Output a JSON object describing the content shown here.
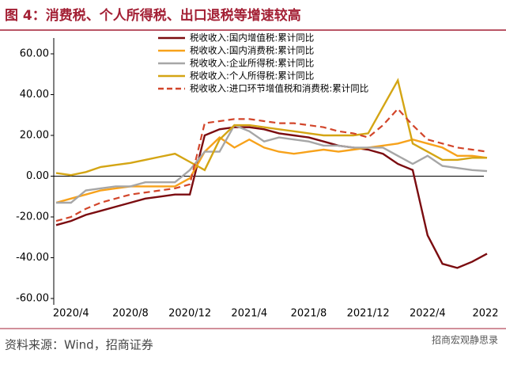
{
  "chart_data": {
    "type": "line",
    "title": "图 4：消费税、个人所得税、出口退税等增速较高",
    "source": "资料来源：Wind，招商证券",
    "watermark": "招商宏观静思录",
    "categories": [
      null,
      "2020/4",
      null,
      null,
      null,
      "2020/8",
      null,
      null,
      null,
      "2020/12",
      null,
      null,
      null,
      "2021/4",
      null,
      null,
      null,
      "2021/8",
      null,
      null,
      null,
      "2021/12",
      null,
      null,
      null,
      "2022/4",
      null,
      null,
      null,
      "2022"
    ],
    "series": [
      {
        "name": "税收收入:国内增值税:累计同比",
        "color": "#7b0c10",
        "dash": false,
        "values": [
          -24,
          -22,
          -19,
          -17,
          -15,
          -13,
          -11,
          -10,
          -9,
          -9,
          20,
          23,
          24,
          24,
          23,
          21,
          20,
          19,
          17,
          15,
          14,
          13,
          11,
          6,
          3,
          -29,
          -43,
          -45,
          -42,
          -38
        ]
      },
      {
        "name": "税收收入:国内消费税:累计同比",
        "color": "#f7a21b",
        "dash": false,
        "values": [
          -13,
          -11,
          -9,
          -7,
          -6,
          -5,
          -5,
          -5,
          -5,
          -1,
          12,
          19,
          14,
          18,
          14,
          12,
          11,
          12,
          13,
          12,
          13,
          14,
          15,
          16,
          18,
          16,
          14,
          10,
          10,
          9
        ]
      },
      {
        "name": "税收收入:企业所得税:累计同比",
        "color": "#a6a6a6",
        "dash": false,
        "values": [
          -13,
          -13,
          -7,
          -6,
          -5,
          -5,
          -3,
          -3,
          -3,
          3,
          12,
          12,
          25,
          22,
          17,
          19,
          18,
          17,
          15,
          15,
          14,
          14,
          14,
          10,
          6,
          10,
          5,
          4,
          3,
          2.5
        ]
      },
      {
        "name": "税收收入:个人所得税:累计同比",
        "color": "#d4a514",
        "dash": false,
        "values": [
          1.5,
          0.5,
          2,
          4.5,
          5.5,
          6.5,
          8,
          9.5,
          11,
          7,
          3,
          18,
          25,
          25,
          24,
          23,
          22,
          21,
          20,
          20,
          20,
          21,
          34,
          47,
          16,
          12,
          8,
          8,
          9,
          9
        ]
      },
      {
        "name": "税收收入:进口环节增值税和消费税:累计同比",
        "color": "#d2452a",
        "dash": true,
        "values": [
          -22,
          -20,
          -16,
          -13,
          -11,
          -9,
          -8,
          -7,
          -6,
          -4,
          26,
          27,
          28,
          28,
          27,
          26,
          26,
          25,
          24,
          22,
          21,
          19,
          25,
          33,
          25,
          18,
          16,
          14,
          13,
          12
        ]
      }
    ],
    "ylim": [
      -60,
      60
    ],
    "yticks": [
      {
        "value": -60,
        "label": "-60.00"
      },
      {
        "value": -40,
        "label": "-40.00"
      },
      {
        "value": -20,
        "label": "-20.00"
      },
      {
        "value": 0,
        "label": "0.00"
      },
      {
        "value": 20,
        "label": "20.00"
      },
      {
        "value": 40,
        "label": "40.00"
      },
      {
        "value": 60,
        "label": "60.00"
      }
    ]
  }
}
